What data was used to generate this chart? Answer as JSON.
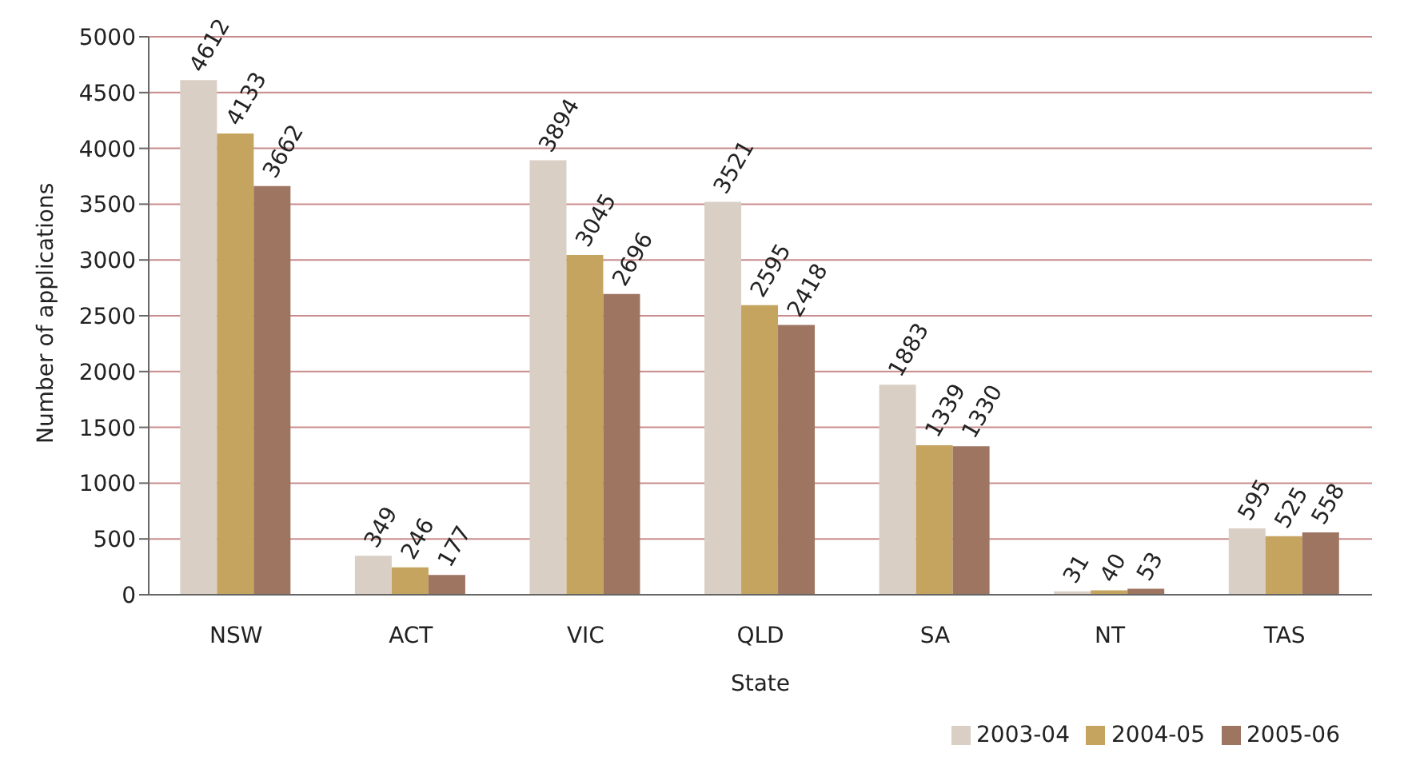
{
  "chart_data": {
    "type": "bar",
    "xlabel": "State",
    "ylabel": "Number of applications",
    "categories": [
      "NSW",
      "ACT",
      "VIC",
      "QLD",
      "SA",
      "NT",
      "TAS"
    ],
    "series": [
      {
        "name": "2003-04",
        "color": "#d9cfc5",
        "values": [
          4612,
          349,
          3894,
          3521,
          1883,
          31,
          595
        ]
      },
      {
        "name": "2004-05",
        "color": "#c4a45f",
        "values": [
          4133,
          246,
          3045,
          2595,
          1339,
          40,
          525
        ]
      },
      {
        "name": "2005-06",
        "color": "#9e7561",
        "values": [
          3662,
          177,
          2696,
          2418,
          1330,
          53,
          558
        ]
      }
    ],
    "ylim": [
      0,
      5000
    ],
    "yticks": [
      0,
      500,
      1000,
      1500,
      2000,
      2500,
      3000,
      3500,
      4000,
      4500,
      5000
    ],
    "grid": "y",
    "legend": "bottom right",
    "data_labels": true
  }
}
